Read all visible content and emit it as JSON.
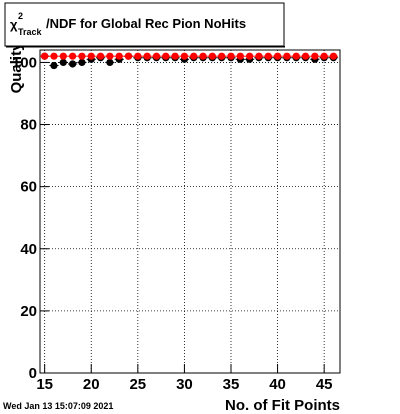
{
  "chart_data": {
    "type": "scatter",
    "title_parts": [
      "χ",
      "2",
      "Track",
      "/NDF for Global Rec Pion NoHits"
    ],
    "x_label": "No. of Fit Points",
    "y_label": "Quality",
    "footer": "Wed Jan 13 15:07:09 2021",
    "x": [
      15,
      16,
      17,
      18,
      19,
      20,
      21,
      22,
      23,
      24,
      25,
      26,
      27,
      28,
      29,
      30,
      31,
      32,
      33,
      34,
      35,
      36,
      37,
      38,
      39,
      40,
      41,
      42,
      43,
      44,
      45,
      46
    ],
    "series": [
      {
        "color": "#000000",
        "values": [
          102,
          99,
          100,
          99.5,
          100,
          101,
          101.5,
          100,
          101,
          102,
          101.5,
          101.5,
          101.5,
          101.5,
          101.5,
          101,
          101.5,
          101.5,
          101.5,
          101.5,
          101.5,
          101,
          101,
          101.5,
          101.5,
          101.5,
          101.5,
          101.5,
          101.5,
          101,
          101.5,
          101.5
        ]
      },
      {
        "color": "#ff0000",
        "values": [
          102,
          102,
          102,
          102,
          102,
          102,
          102,
          102,
          102,
          102,
          102,
          102,
          102,
          102,
          102,
          102,
          102,
          102,
          102,
          102,
          102,
          102,
          102,
          102,
          102,
          102,
          102,
          102,
          102,
          102,
          102,
          102
        ]
      }
    ],
    "xlim": [
      14.5,
      46.7
    ],
    "ylim": [
      0,
      104
    ],
    "xticks": [
      15,
      20,
      25,
      30,
      35,
      40,
      45
    ],
    "yticks": [
      0,
      20,
      40,
      60,
      80,
      100
    ],
    "grid": true
  }
}
